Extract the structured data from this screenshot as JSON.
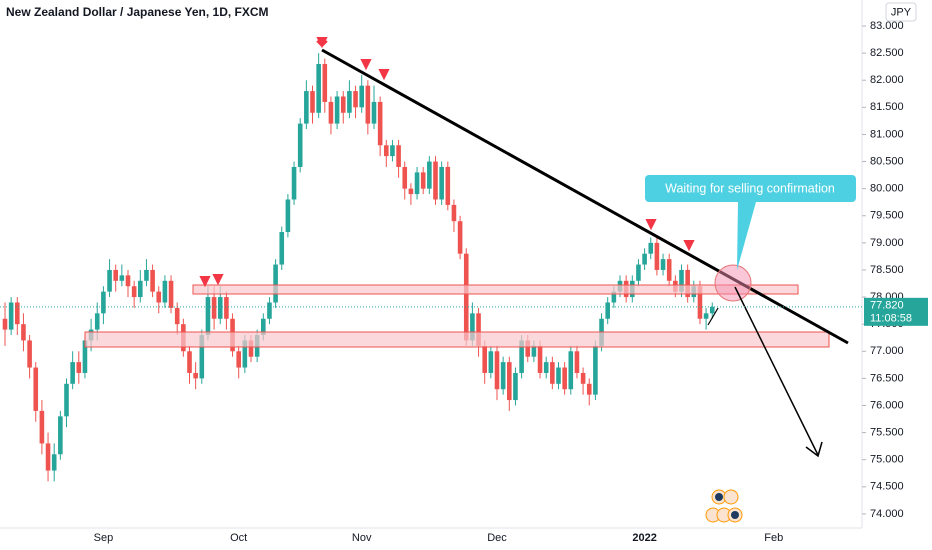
{
  "chart_data": {
    "type": "candlestick",
    "title": "New Zealand Dollar / Japanese Yen, 1D, FXCM",
    "currency": "JPY",
    "categories": [
      null,
      null,
      null,
      null,
      null,
      null,
      null,
      null,
      null,
      null,
      null,
      null,
      null,
      null,
      null,
      null,
      "Sep",
      null,
      null,
      null,
      null,
      null,
      null,
      null,
      null,
      null,
      null,
      null,
      null,
      null,
      null,
      null,
      null,
      null,
      null,
      null,
      null,
      null,
      "Oct",
      null,
      null,
      null,
      null,
      null,
      null,
      null,
      null,
      null,
      null,
      null,
      null,
      null,
      null,
      null,
      null,
      null,
      null,
      null,
      "Nov",
      null,
      null,
      null,
      null,
      null,
      null,
      null,
      null,
      null,
      null,
      null,
      null,
      null,
      null,
      null,
      null,
      null,
      null,
      null,
      null,
      null,
      "Dec",
      null,
      null,
      null,
      null,
      null,
      null,
      null,
      null,
      null,
      null,
      null,
      null,
      null,
      null,
      null,
      null,
      null,
      null,
      null,
      null,
      null,
      null,
      null,
      "2022",
      null,
      null,
      null,
      null,
      null,
      null,
      null,
      null,
      null,
      null,
      null,
      null,
      null,
      null,
      null,
      null,
      null,
      null,
      null,
      null,
      "Feb",
      null,
      null,
      null,
      null,
      null,
      null,
      null,
      null,
      null,
      null,
      null
    ],
    "values": [
      [
        77.6,
        77.9,
        77.1,
        77.4
      ],
      [
        77.4,
        78.0,
        77.3,
        77.9
      ],
      [
        77.9,
        78.0,
        77.3,
        77.5
      ],
      [
        77.5,
        77.7,
        77.0,
        77.2
      ],
      [
        77.2,
        77.3,
        76.5,
        76.7
      ],
      [
        76.7,
        76.8,
        75.7,
        75.9
      ],
      [
        75.9,
        76.1,
        75.1,
        75.3
      ],
      [
        75.3,
        75.5,
        74.6,
        74.8
      ],
      [
        74.8,
        75.3,
        74.6,
        75.1
      ],
      [
        75.1,
        75.9,
        75.0,
        75.8
      ],
      [
        75.8,
        76.5,
        75.6,
        76.4
      ],
      [
        76.4,
        77.0,
        76.3,
        76.8
      ],
      [
        76.8,
        77.0,
        76.4,
        76.6
      ],
      [
        76.6,
        77.3,
        76.5,
        77.2
      ],
      [
        77.2,
        77.6,
        77.0,
        77.4
      ],
      [
        77.4,
        77.9,
        77.2,
        77.7
      ],
      [
        77.7,
        78.2,
        77.5,
        78.1
      ],
      [
        78.1,
        78.7,
        78.0,
        78.5
      ],
      [
        78.5,
        78.6,
        78.1,
        78.3
      ],
      [
        78.3,
        78.6,
        78.2,
        78.4
      ],
      [
        78.4,
        78.5,
        78.0,
        78.2
      ],
      [
        78.2,
        78.3,
        77.8,
        78.0
      ],
      [
        78.0,
        78.5,
        77.9,
        78.3
      ],
      [
        78.3,
        78.7,
        78.2,
        78.5
      ],
      [
        78.5,
        78.6,
        78.0,
        78.1
      ],
      [
        78.1,
        78.2,
        77.7,
        77.9
      ],
      [
        77.9,
        78.4,
        77.8,
        78.3
      ],
      [
        78.3,
        78.4,
        77.7,
        77.8
      ],
      [
        77.8,
        77.9,
        77.3,
        77.5
      ],
      [
        77.5,
        77.6,
        76.9,
        77.0
      ],
      [
        77.0,
        77.1,
        76.4,
        76.6
      ],
      [
        76.6,
        76.8,
        76.3,
        76.5
      ],
      [
        76.5,
        77.4,
        76.4,
        77.3
      ],
      [
        77.3,
        78.2,
        77.2,
        78.0
      ],
      [
        78.0,
        78.2,
        77.4,
        77.6
      ],
      [
        77.6,
        78.2,
        77.5,
        78.0
      ],
      [
        78.0,
        78.1,
        77.4,
        77.6
      ],
      [
        77.6,
        77.7,
        76.9,
        77.0
      ],
      [
        77.0,
        77.1,
        76.5,
        76.7
      ],
      [
        76.7,
        77.3,
        76.6,
        77.2
      ],
      [
        77.2,
        77.3,
        76.8,
        76.9
      ],
      [
        76.9,
        77.4,
        76.8,
        77.3
      ],
      [
        77.3,
        77.7,
        77.2,
        77.6
      ],
      [
        77.6,
        78.0,
        77.5,
        77.9
      ],
      [
        77.9,
        78.7,
        77.8,
        78.6
      ],
      [
        78.6,
        79.3,
        78.5,
        79.2
      ],
      [
        79.2,
        79.9,
        79.1,
        79.8
      ],
      [
        79.8,
        80.5,
        79.7,
        80.4
      ],
      [
        80.4,
        81.3,
        80.3,
        81.2
      ],
      [
        81.2,
        82.0,
        81.1,
        81.8
      ],
      [
        81.8,
        81.9,
        81.2,
        81.4
      ],
      [
        81.4,
        82.5,
        81.3,
        82.3
      ],
      [
        82.3,
        82.4,
        81.4,
        81.6
      ],
      [
        81.6,
        81.7,
        81.0,
        81.2
      ],
      [
        81.2,
        81.8,
        81.1,
        81.7
      ],
      [
        81.7,
        81.8,
        81.2,
        81.4
      ],
      [
        81.4,
        82.0,
        81.3,
        81.8
      ],
      [
        81.8,
        81.9,
        81.3,
        81.5
      ],
      [
        81.5,
        82.1,
        81.4,
        81.9
      ],
      [
        81.9,
        82.0,
        81.0,
        81.2
      ],
      [
        81.2,
        81.9,
        81.1,
        81.6
      ],
      [
        81.6,
        81.7,
        80.6,
        80.8
      ],
      [
        80.8,
        80.9,
        80.4,
        80.6
      ],
      [
        80.6,
        80.9,
        80.5,
        80.8
      ],
      [
        80.8,
        80.9,
        80.2,
        80.4
      ],
      [
        80.4,
        80.5,
        79.8,
        80.0
      ],
      [
        80.0,
        80.1,
        79.7,
        79.9
      ],
      [
        79.9,
        80.4,
        79.8,
        80.3
      ],
      [
        80.3,
        80.4,
        79.9,
        80.0
      ],
      [
        80.0,
        80.6,
        79.9,
        80.5
      ],
      [
        80.5,
        80.6,
        79.7,
        79.8
      ],
      [
        79.8,
        80.5,
        79.7,
        80.4
      ],
      [
        80.4,
        80.5,
        79.6,
        79.7
      ],
      [
        79.7,
        79.8,
        79.2,
        79.4
      ],
      [
        79.4,
        79.5,
        78.7,
        78.8
      ],
      [
        78.8,
        78.9,
        77.1,
        77.2
      ],
      [
        77.2,
        77.9,
        77.1,
        77.7
      ],
      [
        77.7,
        77.8,
        76.9,
        77.1
      ],
      [
        77.1,
        77.2,
        76.4,
        76.6
      ],
      [
        76.6,
        77.1,
        76.5,
        77.0
      ],
      [
        77.0,
        77.1,
        76.1,
        76.3
      ],
      [
        76.3,
        76.9,
        76.2,
        76.8
      ],
      [
        76.8,
        76.9,
        75.9,
        76.1
      ],
      [
        76.1,
        76.7,
        76.0,
        76.6
      ],
      [
        76.6,
        77.3,
        76.5,
        77.2
      ],
      [
        77.2,
        77.3,
        76.8,
        76.9
      ],
      [
        76.9,
        77.2,
        76.8,
        77.1
      ],
      [
        77.1,
        77.2,
        76.5,
        76.6
      ],
      [
        76.6,
        76.9,
        76.5,
        76.8
      ],
      [
        76.8,
        76.9,
        76.3,
        76.4
      ],
      [
        76.4,
        76.8,
        76.3,
        76.7
      ],
      [
        76.7,
        76.8,
        76.2,
        76.3
      ],
      [
        76.3,
        77.1,
        76.2,
        77.0
      ],
      [
        77.0,
        77.1,
        76.5,
        76.6
      ],
      [
        76.6,
        76.7,
        76.2,
        76.4
      ],
      [
        76.4,
        76.5,
        76.0,
        76.2
      ],
      [
        76.2,
        77.2,
        76.1,
        77.1
      ],
      [
        77.1,
        77.7,
        77.0,
        77.6
      ],
      [
        77.6,
        78.0,
        77.5,
        77.9
      ],
      [
        77.9,
        78.2,
        77.8,
        78.1
      ],
      [
        78.1,
        78.4,
        78.0,
        78.3
      ],
      [
        78.3,
        78.4,
        77.9,
        78.0
      ],
      [
        78.0,
        78.4,
        77.9,
        78.3
      ],
      [
        78.3,
        78.7,
        78.2,
        78.6
      ],
      [
        78.6,
        78.9,
        78.5,
        78.8
      ],
      [
        78.8,
        79.1,
        78.7,
        79.0
      ],
      [
        79.0,
        79.1,
        78.4,
        78.5
      ],
      [
        78.5,
        78.8,
        78.4,
        78.7
      ],
      [
        78.7,
        78.8,
        78.2,
        78.3
      ],
      [
        78.3,
        78.4,
        78.0,
        78.1
      ],
      [
        78.1,
        78.6,
        78.0,
        78.5
      ],
      [
        78.5,
        78.6,
        77.9,
        78.0
      ],
      [
        78.0,
        78.3,
        77.9,
        78.2
      ],
      [
        78.2,
        78.3,
        77.5,
        77.6
      ],
      [
        77.6,
        77.8,
        77.4,
        77.7
      ],
      [
        77.7,
        77.9,
        77.6,
        77.82
      ],
      null,
      null,
      null,
      null,
      null,
      null,
      null,
      null,
      null,
      null,
      null,
      null,
      null,
      null,
      null,
      null,
      null,
      null,
      null,
      null
    ],
    "up_color": "#26a69a",
    "down_color": "#ef5350",
    "ylim": [
      73.74,
      83.48
    ],
    "yticks": [
      {
        "value": 74,
        "label": "74.000"
      },
      {
        "value": 74.5,
        "label": "74.500"
      },
      {
        "value": 75,
        "label": "75.000"
      },
      {
        "value": 75.5,
        "label": "75.500"
      },
      {
        "value": 76,
        "label": "76.000"
      },
      {
        "value": 76.5,
        "label": "76.500"
      },
      {
        "value": 77,
        "label": "77.000"
      },
      {
        "value": 77.5,
        "label": "77.500"
      },
      {
        "value": 78,
        "label": "78.000"
      },
      {
        "value": 78.5,
        "label": "78.500"
      },
      {
        "value": 79,
        "label": "79.000"
      },
      {
        "value": 79.5,
        "label": "79.500"
      },
      {
        "value": 80,
        "label": "80.000"
      },
      {
        "value": 80.5,
        "label": "80.500"
      },
      {
        "value": 81,
        "label": "81.000"
      },
      {
        "value": 81.5,
        "label": "81.500"
      },
      {
        "value": 82,
        "label": "82.000"
      },
      {
        "value": 82.5,
        "label": "82.500"
      },
      {
        "value": 83,
        "label": "83.000"
      }
    ],
    "last_price": {
      "value": 77.82,
      "label": "77.820"
    },
    "countdown": "11:08:58",
    "annotation": "Waiting for selling confirmation"
  }
}
